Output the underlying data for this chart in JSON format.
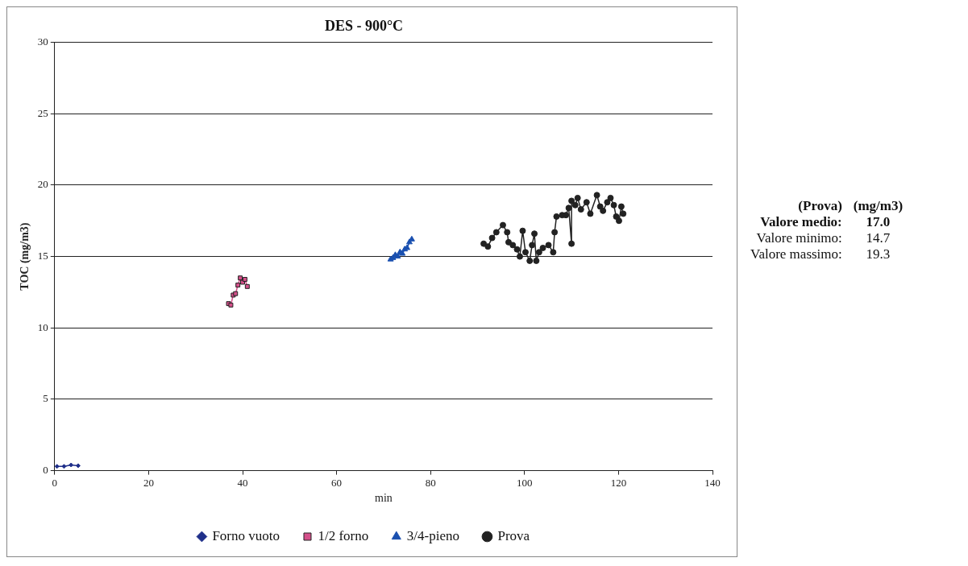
{
  "chart_data": {
    "type": "line",
    "title": "DES - 900°C",
    "xlabel": "min",
    "ylabel": "TOC (mg/m3)",
    "xlim": [
      0,
      140
    ],
    "xticks": [
      0,
      20,
      40,
      60,
      80,
      100,
      120,
      140
    ],
    "ylim": [
      0,
      30
    ],
    "yticks": [
      0,
      5,
      10,
      15,
      20,
      25,
      30
    ],
    "grid": "y",
    "legend": "bottom",
    "line_style": "solid",
    "series": [
      {
        "name": "Forno vuoto",
        "color": "#1f2f8a",
        "marker": "diamond",
        "x": [
          0.5,
          2,
          3.5,
          5
        ],
        "values": [
          0.3,
          0.3,
          0.4,
          0.35
        ]
      },
      {
        "name": "1/2 forno",
        "color": "#d4508a",
        "marker": "square",
        "x": [
          37,
          37.5,
          38,
          38.5,
          39,
          39.5,
          40,
          40.5,
          41
        ],
        "values": [
          11.7,
          11.6,
          12.3,
          12.4,
          13,
          13.5,
          13.2,
          13.4,
          12.9
        ]
      },
      {
        "name": "3/4-pieno",
        "color": "#1a50b0",
        "marker": "triangle",
        "x": [
          71.5,
          72,
          72.5,
          73,
          73.5,
          74,
          74.5,
          75,
          75.5,
          76
        ],
        "values": [
          14.8,
          14.9,
          15.1,
          15.0,
          15.3,
          15.2,
          15.5,
          15.6,
          16.0,
          16.2
        ]
      },
      {
        "name": "Prova",
        "color": "#222222",
        "marker": "circle",
        "x": [
          91.3,
          92.2,
          93.1,
          94.0,
          95.4,
          96.3,
          96.6,
          97.5,
          98.4,
          99.0,
          99.6,
          100.2,
          101.1,
          101.6,
          102.1,
          102.5,
          103.1,
          103.9,
          105.1,
          106.1,
          106.4,
          106.8,
          108.0,
          108.8,
          109.4,
          110.0,
          110.0,
          110.8,
          111.3,
          112.0,
          113.2,
          114.0,
          115.4,
          116.1,
          116.7,
          117.6,
          118.3,
          119.0,
          119.5,
          120.1,
          120.6,
          121.0
        ],
        "values": [
          15.9,
          15.7,
          16.3,
          16.7,
          17.2,
          16.7,
          16.0,
          15.8,
          15.5,
          15.0,
          16.8,
          15.3,
          14.7,
          15.8,
          16.6,
          14.7,
          15.3,
          15.6,
          15.8,
          15.3,
          16.7,
          17.8,
          17.9,
          17.9,
          18.4,
          15.9,
          18.9,
          18.6,
          19.1,
          18.3,
          18.8,
          18.0,
          19.3,
          18.5,
          18.2,
          18.8,
          19.1,
          18.6,
          17.8,
          17.5,
          18.5,
          18.0
        ]
      }
    ],
    "annotations": [
      "(Prova)",
      "(mg/m3)",
      "Valore medio:",
      "17.0",
      "Valore minimo:",
      "14.7",
      "Valore massimo:",
      "19.3"
    ]
  }
}
